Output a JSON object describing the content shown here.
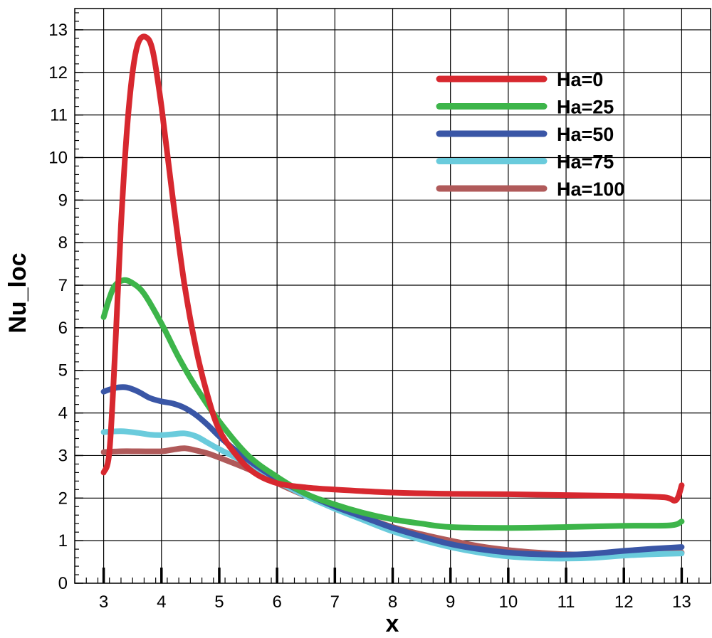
{
  "chart_data": {
    "type": "line",
    "xlabel": "x",
    "ylabel": "Nu_loc",
    "xlim": [
      2.5,
      13.5
    ],
    "ylim": [
      0,
      13.5
    ],
    "x_ticks": [
      "3",
      "4",
      "5",
      "6",
      "7",
      "8",
      "9",
      "10",
      "11",
      "12",
      "13"
    ],
    "y_ticks": [
      "0",
      "1",
      "2",
      "3",
      "4",
      "5",
      "6",
      "7",
      "8",
      "9",
      "10",
      "11",
      "12",
      "13"
    ],
    "grid": true,
    "legend_position": "top-right",
    "series": [
      {
        "name": "Ha=0",
        "color": "#d7282f",
        "points": [
          [
            3.0,
            2.6
          ],
          [
            3.1,
            3.1
          ],
          [
            3.2,
            5.5
          ],
          [
            3.3,
            8.4
          ],
          [
            3.4,
            10.6
          ],
          [
            3.5,
            12.0
          ],
          [
            3.6,
            12.7
          ],
          [
            3.73,
            12.83
          ],
          [
            3.85,
            12.5
          ],
          [
            4.0,
            11.2
          ],
          [
            4.2,
            9.0
          ],
          [
            4.4,
            7.0
          ],
          [
            4.6,
            5.5
          ],
          [
            4.8,
            4.4
          ],
          [
            5.0,
            3.6
          ],
          [
            5.3,
            3.0
          ],
          [
            5.6,
            2.6
          ],
          [
            6.0,
            2.35
          ],
          [
            6.5,
            2.25
          ],
          [
            7.0,
            2.2
          ],
          [
            8.0,
            2.13
          ],
          [
            9.0,
            2.1
          ],
          [
            10.0,
            2.09
          ],
          [
            11.0,
            2.07
          ],
          [
            12.0,
            2.05
          ],
          [
            12.7,
            2.02
          ],
          [
            12.9,
            1.95
          ],
          [
            13.0,
            2.3
          ]
        ]
      },
      {
        "name": "Ha=25",
        "color": "#3db54a",
        "points": [
          [
            3.0,
            6.25
          ],
          [
            3.1,
            6.7
          ],
          [
            3.2,
            7.0
          ],
          [
            3.35,
            7.12
          ],
          [
            3.5,
            7.05
          ],
          [
            3.7,
            6.8
          ],
          [
            4.0,
            6.1
          ],
          [
            4.3,
            5.3
          ],
          [
            4.6,
            4.6
          ],
          [
            5.0,
            3.8
          ],
          [
            5.5,
            3.0
          ],
          [
            6.0,
            2.5
          ],
          [
            6.5,
            2.1
          ],
          [
            7.0,
            1.85
          ],
          [
            7.5,
            1.65
          ],
          [
            8.0,
            1.5
          ],
          [
            8.5,
            1.4
          ],
          [
            9.0,
            1.32
          ],
          [
            10.0,
            1.3
          ],
          [
            11.0,
            1.32
          ],
          [
            12.0,
            1.35
          ],
          [
            12.8,
            1.36
          ],
          [
            13.0,
            1.45
          ]
        ]
      },
      {
        "name": "Ha=50",
        "color": "#3a56a6",
        "points": [
          [
            3.0,
            4.5
          ],
          [
            3.1,
            4.55
          ],
          [
            3.25,
            4.6
          ],
          [
            3.4,
            4.6
          ],
          [
            3.6,
            4.5
          ],
          [
            3.8,
            4.35
          ],
          [
            4.0,
            4.27
          ],
          [
            4.2,
            4.22
          ],
          [
            4.4,
            4.12
          ],
          [
            4.6,
            3.95
          ],
          [
            4.8,
            3.72
          ],
          [
            5.0,
            3.45
          ],
          [
            5.3,
            3.1
          ],
          [
            5.6,
            2.8
          ],
          [
            6.0,
            2.45
          ],
          [
            6.5,
            2.1
          ],
          [
            7.0,
            1.8
          ],
          [
            7.5,
            1.55
          ],
          [
            8.0,
            1.3
          ],
          [
            8.5,
            1.1
          ],
          [
            9.0,
            0.92
          ],
          [
            9.5,
            0.8
          ],
          [
            10.0,
            0.72
          ],
          [
            10.5,
            0.68
          ],
          [
            11.0,
            0.67
          ],
          [
            11.5,
            0.7
          ],
          [
            12.0,
            0.76
          ],
          [
            12.5,
            0.81
          ],
          [
            13.0,
            0.85
          ]
        ]
      },
      {
        "name": "Ha=75",
        "color": "#6acbdc",
        "points": [
          [
            3.0,
            3.55
          ],
          [
            3.3,
            3.57
          ],
          [
            3.6,
            3.53
          ],
          [
            3.8,
            3.49
          ],
          [
            4.0,
            3.48
          ],
          [
            4.2,
            3.5
          ],
          [
            4.4,
            3.52
          ],
          [
            4.6,
            3.45
          ],
          [
            4.8,
            3.3
          ],
          [
            5.0,
            3.15
          ],
          [
            5.5,
            2.8
          ],
          [
            6.0,
            2.4
          ],
          [
            6.5,
            2.05
          ],
          [
            7.0,
            1.75
          ],
          [
            7.5,
            1.48
          ],
          [
            8.0,
            1.22
          ],
          [
            8.5,
            1.02
          ],
          [
            9.0,
            0.85
          ],
          [
            9.5,
            0.72
          ],
          [
            10.0,
            0.63
          ],
          [
            10.5,
            0.59
          ],
          [
            11.0,
            0.58
          ],
          [
            11.5,
            0.6
          ],
          [
            12.0,
            0.65
          ],
          [
            12.5,
            0.68
          ],
          [
            13.0,
            0.7
          ]
        ]
      },
      {
        "name": "Ha=100",
        "color": "#b05a5a",
        "points": [
          [
            3.0,
            3.08
          ],
          [
            3.3,
            3.1
          ],
          [
            3.6,
            3.1
          ],
          [
            4.0,
            3.1
          ],
          [
            4.2,
            3.14
          ],
          [
            4.4,
            3.17
          ],
          [
            4.6,
            3.12
          ],
          [
            4.8,
            3.05
          ],
          [
            5.0,
            2.95
          ],
          [
            5.5,
            2.68
          ],
          [
            6.0,
            2.35
          ],
          [
            6.5,
            2.05
          ],
          [
            7.0,
            1.8
          ],
          [
            7.5,
            1.55
          ],
          [
            8.0,
            1.32
          ],
          [
            8.5,
            1.15
          ],
          [
            9.0,
            1.0
          ],
          [
            9.5,
            0.87
          ],
          [
            10.0,
            0.78
          ],
          [
            10.5,
            0.72
          ],
          [
            11.0,
            0.68
          ],
          [
            11.5,
            0.67
          ],
          [
            12.0,
            0.68
          ],
          [
            12.5,
            0.7
          ],
          [
            13.0,
            0.72
          ]
        ]
      }
    ]
  }
}
